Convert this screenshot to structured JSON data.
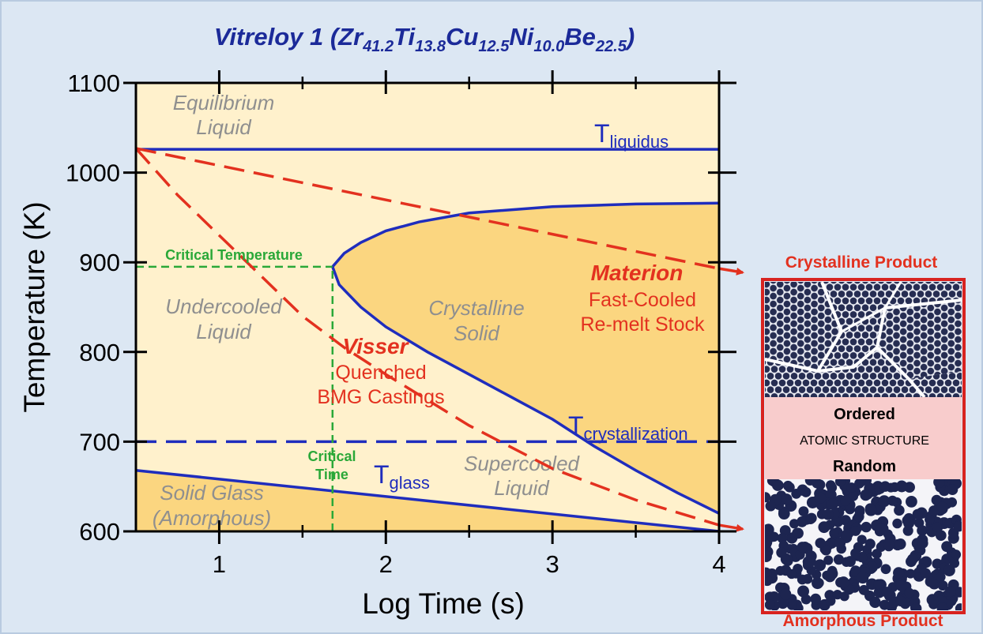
{
  "chart_data": {
    "type": "line",
    "title": [
      {
        "text": "Vitreloy 1 (Zr",
        "sub": "41.2"
      },
      {
        "text": "Ti",
        "sub": "13.8"
      },
      {
        "text": "Cu",
        "sub": "12.5"
      },
      {
        "text": "Ni",
        "sub": "10.0"
      },
      {
        "text": "Be",
        "sub": "22.5"
      },
      {
        "text": ")"
      }
    ],
    "x_label": "Log Time (s)",
    "y_label": "Temperature (K)",
    "xlim": [
      0.5,
      4
    ],
    "xticks": [
      1,
      2,
      3,
      4
    ],
    "xminorticks": [
      1.5,
      2.5,
      3.5
    ],
    "ylim": [
      600,
      1100
    ],
    "yticks": [
      600,
      700,
      800,
      900,
      1000,
      1100
    ],
    "background": "#fff1cc",
    "series": [
      {
        "name": "T",
        "name_sub": "liquidus",
        "color": "#1f2dbd",
        "style": "solid",
        "x": [
          0.5,
          4
        ],
        "values": [
          1026,
          1026
        ]
      },
      {
        "color": "#1f2dbd",
        "style": "solid",
        "fill": "inside",
        "fill_color": "#fbd680",
        "x": [
          4,
          3.5,
          3,
          2.5,
          2.2,
          2,
          1.85,
          1.75,
          1.68,
          1.72,
          1.85,
          2,
          2.25,
          2.5,
          2.75,
          3,
          3.25,
          3.5,
          3.75,
          4
        ],
        "values": [
          966,
          965,
          962,
          955,
          945,
          935,
          922,
          910,
          895,
          875,
          850,
          828,
          800,
          775,
          750,
          725,
          695,
          668,
          643,
          620
        ]
      },
      {
        "name": "T",
        "name_sub": "glass",
        "color": "#1f2dbd",
        "style": "solid",
        "fill": "below",
        "fill_color": "#fbd680",
        "x": [
          0.5,
          4
        ],
        "values": [
          668,
          600
        ]
      },
      {
        "name": "T",
        "name_sub": "crystallization",
        "color": "#1f2dbd",
        "style": "dashed",
        "x": [
          0.5,
          4
        ],
        "values": [
          700,
          700
        ]
      },
      {
        "name": "Critical Temperature",
        "color": "#2aa838",
        "style": "dashed",
        "x": [
          0.5,
          1.68
        ],
        "values": [
          895,
          895
        ]
      },
      {
        "name": [
          "Critical",
          "Time"
        ],
        "color": "#2aa838",
        "style": "dashed",
        "x": [
          1.68,
          1.68
        ],
        "values": [
          600,
          895
        ]
      },
      {
        "name": "Materion",
        "notes": [
          "Fast-Cooled",
          "Re-melt Stock"
        ],
        "color": "#e3311f",
        "style": "dashed",
        "arrow": true,
        "x": [
          0.5,
          4
        ],
        "values": [
          1027,
          893
        ]
      },
      {
        "name": "Visser",
        "notes": [
          "Quenched",
          "BMG Castings"
        ],
        "color": "#e3311f",
        "style": "dashed",
        "arrow": true,
        "x": [
          0.5,
          0.75,
          1,
          1.25,
          1.5,
          1.75,
          2,
          2.5,
          3,
          3.5,
          4
        ],
        "values": [
          1027,
          975,
          930,
          885,
          840,
          805,
          775,
          718,
          670,
          635,
          607
        ]
      }
    ],
    "regions": [
      {
        "lines": [
          "Equilibrium",
          "Liquid"
        ]
      },
      {
        "lines": [
          "Undercooled",
          "Liquid"
        ]
      },
      {
        "lines": [
          "Crystalline",
          "Solid"
        ]
      },
      {
        "lines": [
          "Supercooled",
          "Liquid"
        ]
      },
      {
        "lines": [
          "Solid Glass",
          "(Amorphous)"
        ]
      }
    ]
  },
  "panel": {
    "top_label": "Crystalline Product",
    "middle": [
      "Ordered",
      "ATOMIC STRUCTURE",
      "Random"
    ],
    "bottom_label": "Amorphous Product"
  }
}
